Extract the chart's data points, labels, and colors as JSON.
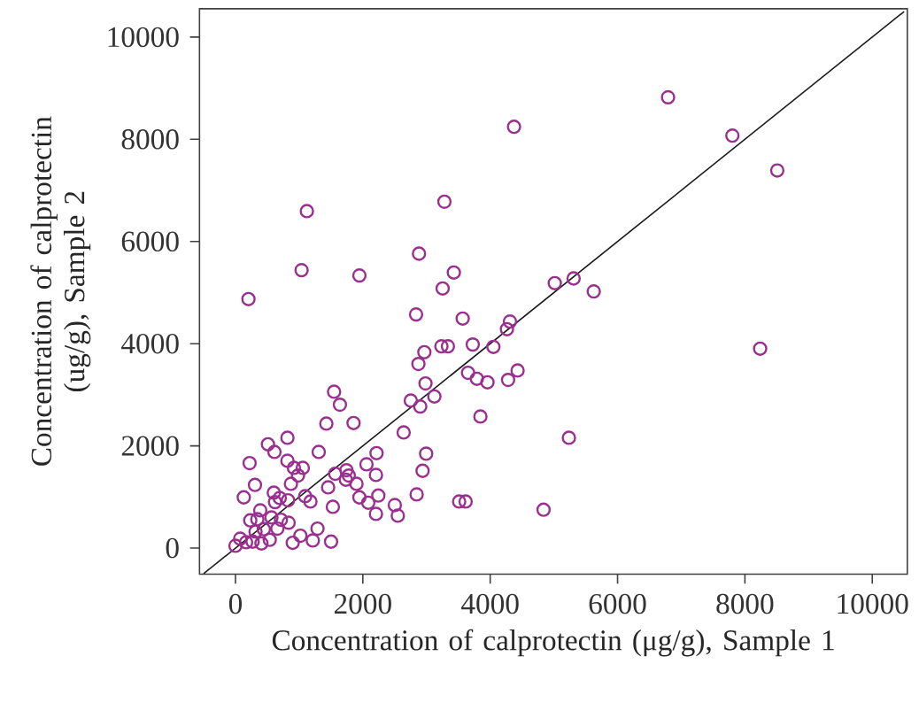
{
  "chart_data": {
    "type": "scatter",
    "xlabel": "Concentration of calprotectin (μg/g), Sample 1",
    "ylabel": "Concentration of calprotectin (ug/g), Sample 2",
    "xlim": [
      -565,
      10550
    ],
    "ylim": [
      -510,
      10555
    ],
    "xticks": [
      0,
      2000,
      4000,
      6000,
      8000,
      10000
    ],
    "yticks": [
      0,
      2000,
      4000,
      6000,
      8000,
      10000
    ],
    "series": [
      {
        "color": "#9b2f8f",
        "marker": "circle",
        "x": [
          6793,
          4374,
          7803,
          8508,
          3281,
          1121,
          2882,
          1038,
          1946,
          3429,
          3253,
          5014,
          5310,
          5626,
          204,
          2836,
          3568,
          4310,
          4263,
          3234,
          3336,
          3726,
          4050,
          2966,
          8239,
          2873,
          4430,
          3652,
          3791,
          3957,
          4281,
          2984,
          3123,
          1548,
          1640,
          2753,
          2901,
          1427,
          1854,
          3846,
          2641,
          816,
          510,
          612,
          816,
          222,
          1057,
          918,
          982,
          1307,
          2215,
          2994,
          1742,
          1733,
          1566,
          1779,
          1900,
          2057,
          2206,
          2938,
          306,
          130,
          871,
          602,
          695,
          825,
          1094,
          1177,
          1455,
          1529,
          1946,
          2085,
          2243,
          2206,
          2502,
          2549,
          2845,
          3512,
          3614,
          4838,
          5236,
          389,
          343,
          232,
          565,
          714,
          834,
          658,
          445,
          74,
          0,
          167,
          269,
          408,
          538,
          899,
          1019,
          1214,
          1288,
          1501,
          315,
          621
        ],
        "values": [
          8822,
          8245,
          8072,
          7390,
          6778,
          6594,
          5762,
          5439,
          5335,
          5393,
          5081,
          5185,
          5277,
          5023,
          4873,
          4573,
          4492,
          4434,
          4284,
          3949,
          3949,
          3984,
          3938,
          3834,
          3903,
          3603,
          3476,
          3430,
          3314,
          3245,
          3291,
          3222,
          2968,
          3060,
          2806,
          2887,
          2771,
          2436,
          2448,
          2575,
          2263,
          2159,
          2032,
          1882,
          1709,
          1663,
          1570,
          1570,
          1420,
          1882,
          1859,
          1848,
          1524,
          1339,
          1455,
          1420,
          1259,
          1640,
          1432,
          1513,
          1236,
          993,
          1259,
          1085,
          982,
          935,
          1016,
          912,
          1189,
          808,
          993,
          889,
          1028,
          670,
          843,
          635,
          1051,
          912,
          912,
          751,
          2159,
          739,
          566,
          543,
          600,
          554,
          497,
          381,
          370,
          185,
          46,
          115,
          127,
          92,
          162,
          104,
          242,
          150,
          381,
          127,
          323,
          900
        ]
      },
      {
        "type": "line",
        "color": "#1a1a1a",
        "x": [
          -500,
          10500
        ],
        "values": [
          -500,
          10500
        ]
      }
    ]
  }
}
